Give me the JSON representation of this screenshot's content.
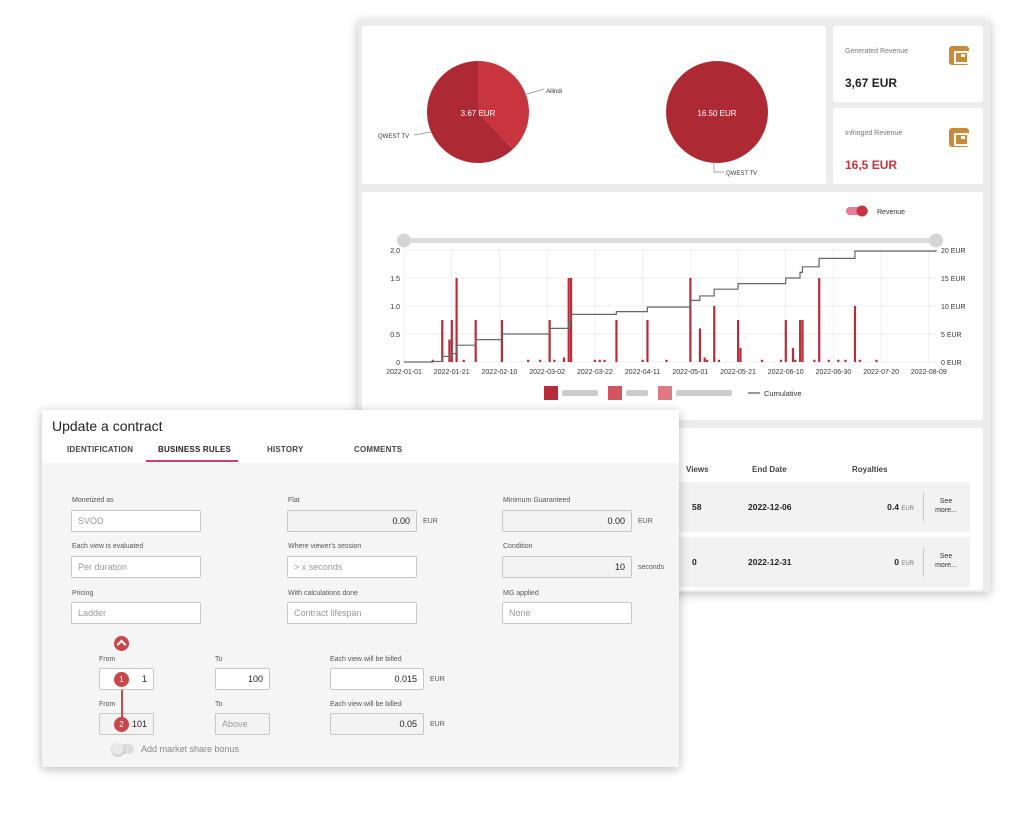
{
  "dashboard": {
    "pie1": {
      "center_label": "3.67 EUR",
      "label_a": "Allindi",
      "label_b": "QWEST TV",
      "slices": [
        {
          "name": "Allindi",
          "fraction": 0.38,
          "color": "#c9353f"
        },
        {
          "name": "QWEST TV",
          "fraction": 0.62,
          "color": "#ad2a34"
        }
      ]
    },
    "pie2": {
      "center_label": "16.50 EUR",
      "label": "QWEST TV",
      "color": "#ad2a34"
    },
    "generated": {
      "label": "Generated Revenue",
      "value": "3,67 EUR",
      "icon": "wallet-icon"
    },
    "infringed": {
      "label": "Infringed Revenue",
      "value": "16,5 EUR",
      "icon": "wallet-icon",
      "color": "#c9353f"
    },
    "table": {
      "headers": {
        "views": "Views",
        "end_date": "End Date",
        "royalties": "Royalties"
      },
      "rows": [
        {
          "views": "58",
          "end_date": "2022-12-06",
          "royalty": "0.4",
          "currency": "EUR",
          "more": "See more..."
        },
        {
          "views": "0",
          "end_date": "2022-12-31",
          "royalty": "0",
          "currency": "EUR",
          "more": "See more..."
        }
      ]
    }
  },
  "chart_data": {
    "type": "bar",
    "toggle_label": "Revenue",
    "left_ticks": [
      "0",
      "0.5",
      "1.0",
      "1.5",
      "2.0"
    ],
    "right_ticks": [
      "0 EUR",
      "5 EUR",
      "10 EUR",
      "15 EUR",
      "20 EUR"
    ],
    "ylim": [
      0,
      2.0
    ],
    "y2lim": [
      0,
      20
    ],
    "x_ticks": [
      "2022-01-01",
      "2022-01-21",
      "2022-02-10",
      "2022-03-02",
      "2022-03-22",
      "2022-04-11",
      "2022-05-01",
      "2022-05-21",
      "2022-06-10",
      "2022-06-30",
      "2022-07-20",
      "2022-08-09"
    ],
    "legend_cumulative": "Cumulative",
    "series_colors": [
      "#b72e3a",
      "#d05560",
      "#e07a82"
    ],
    "bars": [
      {
        "day": 12,
        "v": 0.04
      },
      {
        "day": 16,
        "v": 0.75
      },
      {
        "day": 19,
        "v": 0.4
      },
      {
        "day": 20,
        "v": 0.75
      },
      {
        "day": 22,
        "v": 1.5
      },
      {
        "day": 25,
        "v": 0.04
      },
      {
        "day": 30,
        "v": 0.75
      },
      {
        "day": 41,
        "v": 0.75
      },
      {
        "day": 52,
        "v": 0.04
      },
      {
        "day": 57,
        "v": 0.04
      },
      {
        "day": 61,
        "v": 0.75
      },
      {
        "day": 63,
        "v": 0.04
      },
      {
        "day": 67,
        "v": 0.08
      },
      {
        "day": 69,
        "v": 1.5
      },
      {
        "day": 70,
        "v": 1.5
      },
      {
        "day": 80,
        "v": 0.04
      },
      {
        "day": 82,
        "v": 0.04
      },
      {
        "day": 84,
        "v": 0.04
      },
      {
        "day": 89,
        "v": 0.75
      },
      {
        "day": 100,
        "v": 0.04
      },
      {
        "day": 102,
        "v": 0.75
      },
      {
        "day": 110,
        "v": 0.04
      },
      {
        "day": 120,
        "v": 1.5
      },
      {
        "day": 124,
        "v": 0.6
      },
      {
        "day": 126,
        "v": 0.08
      },
      {
        "day": 127,
        "v": 0.04
      },
      {
        "day": 130,
        "v": 1.0
      },
      {
        "day": 132,
        "v": 0.04
      },
      {
        "day": 140,
        "v": 0.75
      },
      {
        "day": 141,
        "v": 0.25
      },
      {
        "day": 150,
        "v": 0.04
      },
      {
        "day": 158,
        "v": 0.04
      },
      {
        "day": 160,
        "v": 0.75
      },
      {
        "day": 163,
        "v": 0.25
      },
      {
        "day": 164,
        "v": 0.04
      },
      {
        "day": 166,
        "v": 0.75
      },
      {
        "day": 167,
        "v": 0.75
      },
      {
        "day": 172,
        "v": 0.04
      },
      {
        "day": 174,
        "v": 1.5
      },
      {
        "day": 178,
        "v": 0.04
      },
      {
        "day": 182,
        "v": 0.04
      },
      {
        "day": 185,
        "v": 0.04
      },
      {
        "day": 189,
        "v": 1.0
      },
      {
        "day": 191,
        "v": 0.04
      },
      {
        "day": 198,
        "v": 0.04
      }
    ],
    "cumulative": [
      {
        "day": 0,
        "v": 0
      },
      {
        "day": 12,
        "v": 0.1
      },
      {
        "day": 16,
        "v": 1.0
      },
      {
        "day": 20,
        "v": 1.5
      },
      {
        "day": 22,
        "v": 3.0
      },
      {
        "day": 30,
        "v": 4.0
      },
      {
        "day": 41,
        "v": 5.0
      },
      {
        "day": 61,
        "v": 6.0
      },
      {
        "day": 69,
        "v": 7.0
      },
      {
        "day": 70,
        "v": 8.5
      },
      {
        "day": 89,
        "v": 9.0
      },
      {
        "day": 102,
        "v": 9.8
      },
      {
        "day": 120,
        "v": 11.0
      },
      {
        "day": 124,
        "v": 11.8
      },
      {
        "day": 130,
        "v": 13.0
      },
      {
        "day": 140,
        "v": 14.0
      },
      {
        "day": 160,
        "v": 15.0
      },
      {
        "day": 166,
        "v": 16.0
      },
      {
        "day": 167,
        "v": 17.0
      },
      {
        "day": 174,
        "v": 18.5
      },
      {
        "day": 189,
        "v": 19.8
      },
      {
        "day": 223,
        "v": 20.0
      }
    ]
  },
  "contract": {
    "title": "Update a contract",
    "tabs": [
      "IDENTIFICATION",
      "BUSINESS RULES",
      "HISTORY",
      "COMMENTS"
    ],
    "monetized_label": "Monetized as",
    "monetized_value": "SVOD",
    "flat_label": "Flat",
    "flat_value": "0.00",
    "flat_unit": "EUR",
    "mg_label": "Minimum Guaranteed",
    "mg_value": "0.00",
    "mg_unit": "EUR",
    "evaluated_label": "Each view is evaluated",
    "evaluated_value": "Per duration",
    "session_label": "Where viewer's session",
    "session_value": "> x seconds",
    "condition_label": "Condition",
    "condition_value": "10",
    "condition_unit": "seconds",
    "pricing_label": "Pricing",
    "pricing_value": "Ladder",
    "calc_label": "With calculations done",
    "calc_value": "Contract lifespan",
    "mgapplied_label": "MG applied",
    "mgapplied_value": "None",
    "tiers": [
      {
        "step": "1",
        "from_label": "From",
        "from": "1",
        "to_label": "To",
        "to": "100",
        "billed_label": "Each view will be billed",
        "billed": "0.015",
        "unit": "EUR"
      },
      {
        "step": "2",
        "from_label": "From",
        "from": "101",
        "to_label": "To",
        "to": "Above",
        "billed_label": "Each view will be billed",
        "billed": "0.05",
        "unit": "EUR"
      }
    ],
    "market_share_label": "Add market share bonus"
  }
}
